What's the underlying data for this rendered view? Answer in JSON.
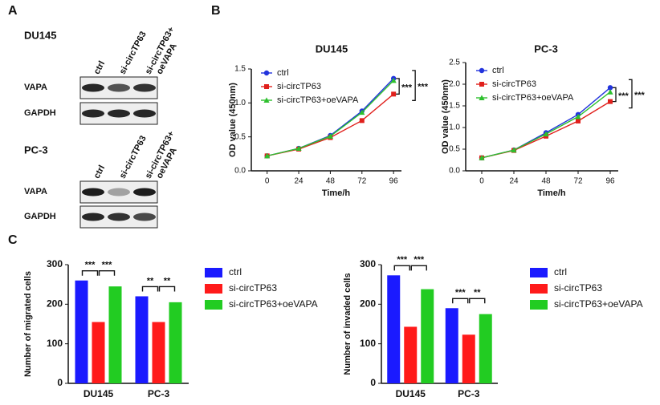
{
  "panel_labels": [
    "A",
    "B",
    "C"
  ],
  "blots": [
    {
      "title": "DU145",
      "lanes": [
        [
          "ctrl"
        ],
        [
          "si-circTP63"
        ],
        [
          "si-circTP63+",
          "oeVAPA"
        ]
      ],
      "rows": [
        "VAPA",
        "GAPDH"
      ]
    },
    {
      "title": "PC-3",
      "lanes": [
        [
          "ctrl"
        ],
        [
          "si-circTP63"
        ],
        [
          "si-circTP63+",
          "oeVAPA"
        ]
      ],
      "rows": [
        "VAPA",
        "GAPDH"
      ]
    }
  ],
  "chart_data": [
    {
      "type": "line",
      "title": "DU145",
      "x_label": "Time/h",
      "y_label": "OD value (450nm)",
      "x": [
        0,
        24,
        48,
        72,
        96
      ],
      "xlim": [
        -12,
        102
      ],
      "xticks": [
        0,
        24,
        48,
        72,
        96
      ],
      "ylim": [
        0,
        1.5
      ],
      "yticks": [
        {
          "value": 0,
          "label": "0.0"
        },
        {
          "value": 0.5,
          "label": "0.5"
        },
        {
          "value": 1,
          "label": "1.0"
        },
        {
          "value": 1.5,
          "label": "1.5"
        }
      ],
      "series": [
        {
          "name": "ctrl",
          "color": "#2233dd",
          "marker": "circle",
          "values": [
            0.22,
            0.33,
            0.52,
            0.88,
            1.36
          ]
        },
        {
          "name": "si-circTP63",
          "color": "#e0201c",
          "marker": "square",
          "values": [
            0.22,
            0.32,
            0.49,
            0.74,
            1.13
          ]
        },
        {
          "name": "si-circTP63+oeVAPA",
          "color": "#2ec02e",
          "marker": "triangle",
          "values": [
            0.22,
            0.33,
            0.51,
            0.86,
            1.33
          ]
        }
      ],
      "annotations": [
        "***",
        "***"
      ]
    },
    {
      "type": "line",
      "title": "PC-3",
      "x_label": "Time/h",
      "y_label": "OD value (450nm)",
      "x": [
        0,
        24,
        48,
        72,
        96
      ],
      "xlim": [
        -12,
        102
      ],
      "xticks": [
        0,
        24,
        48,
        72,
        96
      ],
      "ylim": [
        0,
        2.5
      ],
      "yticks": [
        {
          "value": 0,
          "label": "0.0"
        },
        {
          "value": 0.5,
          "label": "0.5"
        },
        {
          "value": 1,
          "label": "1.0"
        },
        {
          "value": 1.5,
          "label": "1.5"
        },
        {
          "value": 2,
          "label": "2.0"
        },
        {
          "value": 2.5,
          "label": "2.5"
        }
      ],
      "series": [
        {
          "name": "ctrl",
          "color": "#2233dd",
          "marker": "circle",
          "values": [
            0.3,
            0.48,
            0.88,
            1.3,
            1.92
          ]
        },
        {
          "name": "si-circTP63",
          "color": "#e0201c",
          "marker": "square",
          "values": [
            0.3,
            0.47,
            0.8,
            1.15,
            1.6
          ]
        },
        {
          "name": "si-circTP63+oeVAPA",
          "color": "#2ec02e",
          "marker": "triangle",
          "values": [
            0.3,
            0.48,
            0.85,
            1.25,
            1.82
          ]
        }
      ],
      "annotations": [
        "***",
        "***"
      ]
    },
    {
      "type": "bar",
      "y_label": "Number of migrated cells",
      "categories": [
        "DU145",
        "PC-3"
      ],
      "ylim": [
        0,
        300
      ],
      "yticks": [
        0,
        100,
        200,
        300
      ],
      "series": [
        {
          "name": "ctrl",
          "color": "#1a1aff",
          "values": [
            260,
            220
          ]
        },
        {
          "name": "si-circTP63",
          "color": "#ff1a1a",
          "values": [
            155,
            155
          ]
        },
        {
          "name": "si-circTP63+oeVAPA",
          "color": "#22cc22",
          "values": [
            245,
            205
          ]
        }
      ],
      "annotations": [
        "***",
        "***",
        "**",
        "**"
      ]
    },
    {
      "type": "bar",
      "y_label": "Number of invaded cells",
      "categories": [
        "DU145",
        "PC-3"
      ],
      "ylim": [
        0,
        300
      ],
      "yticks": [
        0,
        100,
        200,
        300
      ],
      "series": [
        {
          "name": "ctrl",
          "color": "#1a1aff",
          "values": [
            273,
            190
          ]
        },
        {
          "name": "si-circTP63",
          "color": "#ff1a1a",
          "values": [
            143,
            123
          ]
        },
        {
          "name": "si-circTP63+oeVAPA",
          "color": "#22cc22",
          "values": [
            238,
            175
          ]
        }
      ],
      "annotations": [
        "***",
        "***",
        "***",
        "**"
      ]
    }
  ]
}
